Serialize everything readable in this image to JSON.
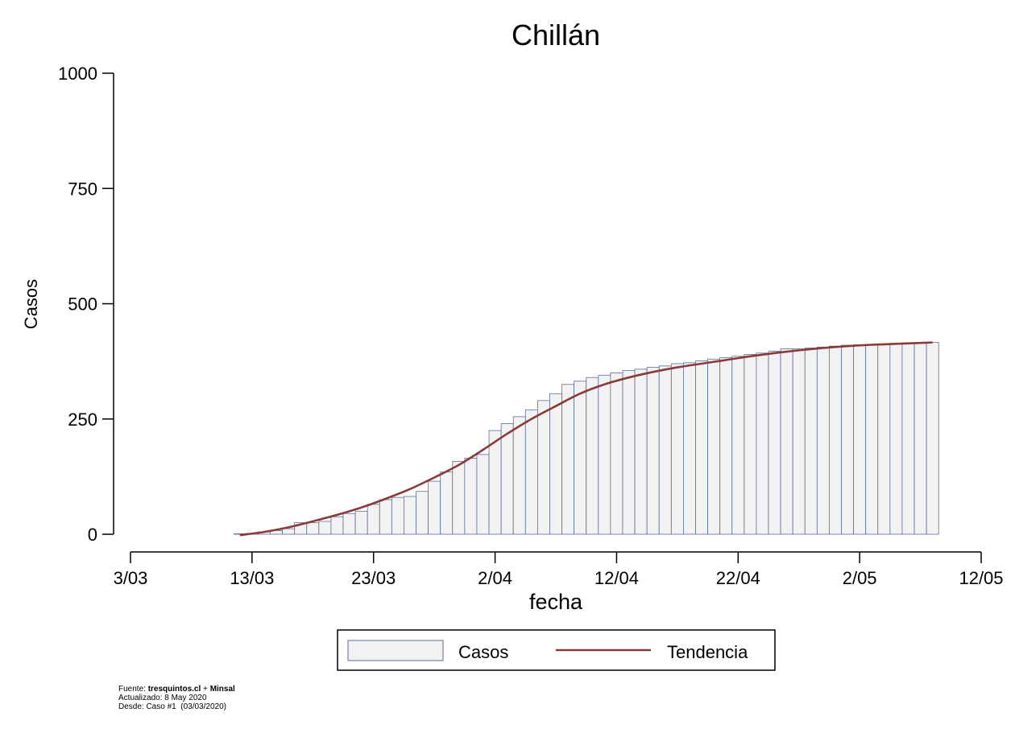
{
  "chart_data": {
    "type": "bar",
    "title": "Chillán",
    "xlabel": "fecha",
    "ylabel": "Casos",
    "ylim": [
      0,
      1000
    ],
    "yticks": [
      0,
      250,
      500,
      750,
      1000
    ],
    "xlim": [
      "2020-03-03",
      "2020-05-12"
    ],
    "xticks": [
      {
        "date": "2020-03-03",
        "label": "3/03"
      },
      {
        "date": "2020-03-13",
        "label": "13/03"
      },
      {
        "date": "2020-03-23",
        "label": "23/03"
      },
      {
        "date": "2020-04-02",
        "label": "2/04"
      },
      {
        "date": "2020-04-12",
        "label": "12/04"
      },
      {
        "date": "2020-04-22",
        "label": "22/04"
      },
      {
        "date": "2020-05-02",
        "label": "2/05"
      },
      {
        "date": "2020-05-12",
        "label": "12/05"
      }
    ],
    "grid": false,
    "legend_position": "bottom",
    "series": [
      {
        "name": "Casos",
        "kind": "bar",
        "color": "#f2f2f2",
        "edge_color": "#5a6f9a",
        "dates": [
          "2020-03-12",
          "2020-03-13",
          "2020-03-14",
          "2020-03-15",
          "2020-03-16",
          "2020-03-17",
          "2020-03-18",
          "2020-03-19",
          "2020-03-20",
          "2020-03-21",
          "2020-03-22",
          "2020-03-23",
          "2020-03-24",
          "2020-03-25",
          "2020-03-26",
          "2020-03-27",
          "2020-03-28",
          "2020-03-29",
          "2020-03-30",
          "2020-03-31",
          "2020-04-01",
          "2020-04-02",
          "2020-04-03",
          "2020-04-04",
          "2020-04-05",
          "2020-04-06",
          "2020-04-07",
          "2020-04-08",
          "2020-04-09",
          "2020-04-10",
          "2020-04-11",
          "2020-04-12",
          "2020-04-13",
          "2020-04-14",
          "2020-04-15",
          "2020-04-16",
          "2020-04-17",
          "2020-04-18",
          "2020-04-19",
          "2020-04-20",
          "2020-04-21",
          "2020-04-22",
          "2020-04-23",
          "2020-04-24",
          "2020-04-25",
          "2020-04-26",
          "2020-04-27",
          "2020-04-28",
          "2020-04-29",
          "2020-04-30",
          "2020-05-01",
          "2020-05-02",
          "2020-05-03",
          "2020-05-04",
          "2020-05-05",
          "2020-05-06",
          "2020-05-07",
          "2020-05-08"
        ],
        "values": [
          1,
          2,
          5,
          8,
          12,
          25,
          25,
          28,
          38,
          45,
          50,
          65,
          75,
          80,
          82,
          93,
          115,
          135,
          158,
          165,
          173,
          225,
          240,
          255,
          270,
          290,
          305,
          325,
          332,
          340,
          345,
          350,
          355,
          358,
          362,
          365,
          370,
          372,
          376,
          380,
          383,
          386,
          390,
          393,
          397,
          402,
          402,
          404,
          406,
          408,
          410,
          411,
          412,
          413,
          414,
          414,
          415,
          416
        ]
      },
      {
        "name": "Tendencia",
        "kind": "line",
        "color": "#8b3a3a",
        "dates": [
          "2020-03-12",
          "2020-03-14",
          "2020-03-16",
          "2020-03-18",
          "2020-03-20",
          "2020-03-22",
          "2020-03-24",
          "2020-03-26",
          "2020-03-28",
          "2020-03-30",
          "2020-04-01",
          "2020-04-03",
          "2020-04-05",
          "2020-04-07",
          "2020-04-09",
          "2020-04-11",
          "2020-04-13",
          "2020-04-15",
          "2020-04-17",
          "2020-04-19",
          "2020-04-21",
          "2020-04-23",
          "2020-04-25",
          "2020-04-27",
          "2020-04-29",
          "2020-05-01",
          "2020-05-03",
          "2020-05-05",
          "2020-05-08"
        ],
        "values": [
          -2,
          5,
          15,
          28,
          42,
          58,
          77,
          98,
          123,
          150,
          183,
          218,
          250,
          278,
          305,
          325,
          340,
          352,
          362,
          370,
          378,
          386,
          393,
          399,
          404,
          408,
          411,
          413,
          416
        ]
      }
    ]
  },
  "footer": {
    "source_prefix": "Fuente: ",
    "source_1": "tresquintos.cl",
    "source_joiner": " + ",
    "source_2": "Minsal",
    "updated": "Actualizado: 8 May 2020",
    "since": "Desde: Caso #1  (03/03/2020)"
  }
}
